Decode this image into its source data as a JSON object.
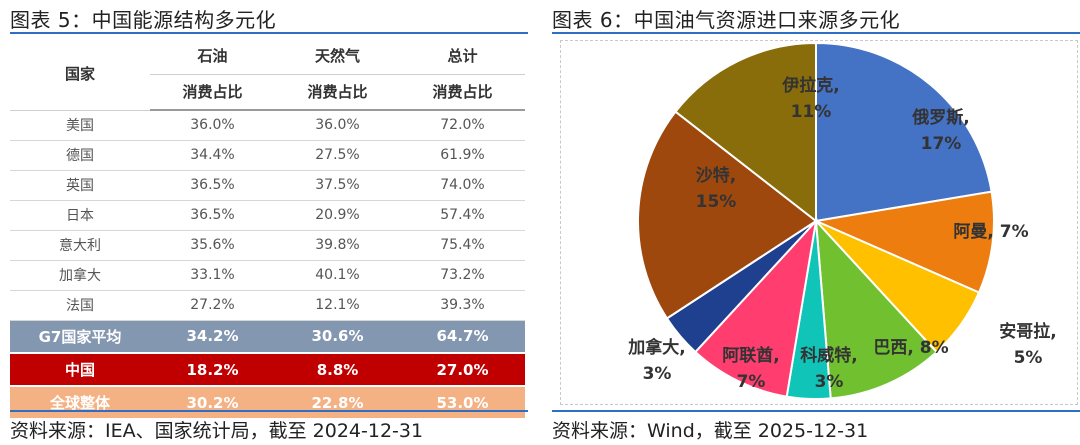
{
  "left": {
    "title": "图表 5：中国能源结构多元化",
    "source": "资料来源：IEA、国家统计局，截至 2024-12-31",
    "table": {
      "country_header": "国家",
      "group_headers": [
        "石油",
        "天然气",
        "总计"
      ],
      "sub_header": "消费占比",
      "rows": [
        {
          "country": "美国",
          "oil": "36.0%",
          "gas": "36.0%",
          "total": "72.0%"
        },
        {
          "country": "德国",
          "oil": "34.4%",
          "gas": "27.5%",
          "total": "61.9%"
        },
        {
          "country": "英国",
          "oil": "36.5%",
          "gas": "37.5%",
          "total": "74.0%"
        },
        {
          "country": "日本",
          "oil": "36.5%",
          "gas": "20.9%",
          "total": "57.4%"
        },
        {
          "country": "意大利",
          "oil": "35.6%",
          "gas": "39.8%",
          "total": "75.4%"
        },
        {
          "country": "加拿大",
          "oil": "33.1%",
          "gas": "40.1%",
          "total": "73.2%"
        },
        {
          "country": "法国",
          "oil": "27.2%",
          "gas": "12.1%",
          "total": "39.3%"
        }
      ],
      "summary_rows": [
        {
          "country": "G7国家平均",
          "oil": "34.2%",
          "gas": "30.6%",
          "total": "64.7%",
          "color": "#8497b0"
        },
        {
          "country": "中国",
          "oil": "18.2%",
          "gas": "8.8%",
          "total": "27.0%",
          "color": "#c00000"
        },
        {
          "country": "全球整体",
          "oil": "30.2%",
          "gas": "22.8%",
          "total": "53.0%",
          "color": "#f4b183"
        }
      ]
    }
  },
  "right": {
    "title": "图表 6：中国油气资源进口来源多元化",
    "source": "资料来源：Wind，截至 2025-12-31",
    "chart_data": {
      "type": "pie",
      "start_angle_deg": 0,
      "direction": "clockwise",
      "slices": [
        {
          "label": "俄罗斯, 17%",
          "value": 17,
          "color": "#4472c4"
        },
        {
          "label": "阿曼, 7%",
          "value": 7,
          "color": "#ed7d0e"
        },
        {
          "label": "安哥拉, 5%",
          "value": 5,
          "color": "#ffc000"
        },
        {
          "label": "巴西, 8%",
          "value": 8,
          "color": "#70c030"
        },
        {
          "label": "科威特, 3%",
          "value": 3,
          "color": "#11c4b8"
        },
        {
          "label": "阿联酋, 7%",
          "value": 7,
          "color": "#ff3d6e"
        },
        {
          "label": "加拿大, 3%",
          "value": 3,
          "color": "#1f3f8f"
        },
        {
          "label": "沙特, 15%",
          "value": 15,
          "color": "#9e480e"
        },
        {
          "label": "伊拉克, 11%",
          "value": 11,
          "color": "#8a6d0b"
        }
      ]
    }
  }
}
